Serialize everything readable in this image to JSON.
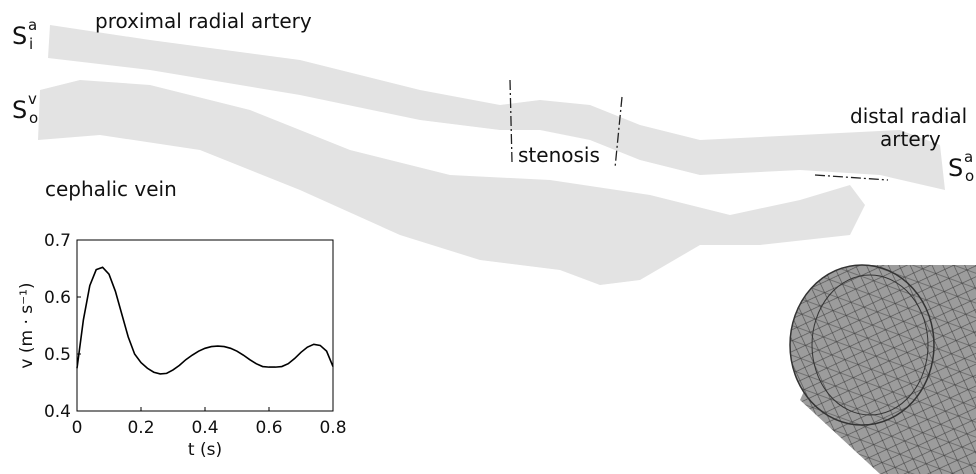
{
  "labels": {
    "artery_inlet": {
      "base": "S",
      "sup": "a",
      "sub": "i"
    },
    "vein_outlet": {
      "base": "S",
      "sup": "v",
      "sub": "o"
    },
    "artery_outlet": {
      "base": "S",
      "sup": "a",
      "sub": "o"
    },
    "proximal": "proximal radial artery",
    "distal": [
      "distal radial",
      "artery"
    ],
    "vein": "cephalic vein",
    "stenosis": "stenosis"
  },
  "chart_data": {
    "type": "line",
    "x": [
      0,
      0.02,
      0.04,
      0.06,
      0.08,
      0.1,
      0.12,
      0.14,
      0.16,
      0.18,
      0.2,
      0.22,
      0.24,
      0.26,
      0.28,
      0.3,
      0.32,
      0.34,
      0.36,
      0.38,
      0.4,
      0.42,
      0.44,
      0.46,
      0.48,
      0.5,
      0.52,
      0.54,
      0.56,
      0.58,
      0.6,
      0.62,
      0.64,
      0.66,
      0.68,
      0.7,
      0.72,
      0.74,
      0.76,
      0.78,
      0.8
    ],
    "values": [
      0.475,
      0.56,
      0.62,
      0.648,
      0.652,
      0.64,
      0.61,
      0.57,
      0.53,
      0.5,
      0.485,
      0.475,
      0.468,
      0.465,
      0.466,
      0.472,
      0.48,
      0.49,
      0.498,
      0.505,
      0.51,
      0.513,
      0.514,
      0.513,
      0.51,
      0.505,
      0.498,
      0.49,
      0.483,
      0.478,
      0.477,
      0.477,
      0.478,
      0.483,
      0.492,
      0.503,
      0.512,
      0.517,
      0.515,
      0.505,
      0.478
    ],
    "color": "#000000",
    "xlabel": "t (s)",
    "ylabel": "v (m · s⁻¹)",
    "xlim": [
      0,
      0.8
    ],
    "xticks": [
      0,
      0.2,
      0.4,
      0.6,
      0.8
    ],
    "ylim": [
      0.4,
      0.7
    ],
    "yticks": [
      0.4,
      0.5,
      0.6,
      0.7
    ]
  }
}
